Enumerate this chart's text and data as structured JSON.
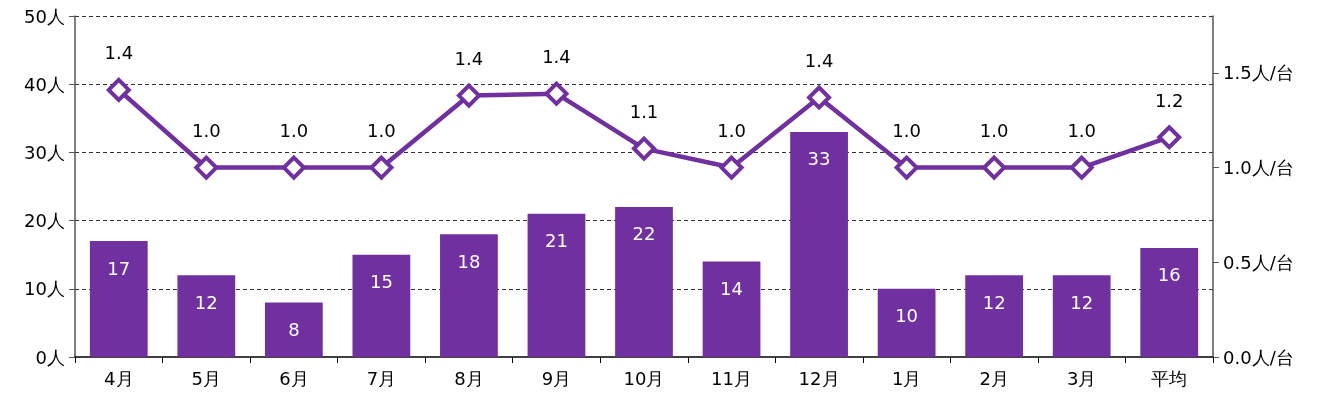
{
  "chart_data": {
    "type": "bar",
    "categories": [
      "4月",
      "5月",
      "6月",
      "7月",
      "8月",
      "9月",
      "10月",
      "11月",
      "12月",
      "1月",
      "2月",
      "3月",
      "平均"
    ],
    "ylim": [
      0,
      50
    ],
    "yticks": [
      {
        "value": 0,
        "label": "0人"
      },
      {
        "value": 10,
        "label": "10人"
      },
      {
        "value": 20,
        "label": "20人"
      },
      {
        "value": 30,
        "label": "30人"
      },
      {
        "value": 40,
        "label": "40人"
      },
      {
        "value": 50,
        "label": "50人"
      }
    ],
    "y2lim": [
      0,
      1.8
    ],
    "y2ticks": [
      {
        "value": 0,
        "label": "0.0人/台"
      },
      {
        "value": 0.5,
        "label": "0.5人/台"
      },
      {
        "value": 1,
        "label": "1.0人/台"
      },
      {
        "value": 1.5,
        "label": "1.5人/台"
      }
    ],
    "grid": "y",
    "series": [
      {
        "color": "#7030a0",
        "values": [
          17,
          12,
          8,
          15,
          18,
          21,
          22,
          14,
          33,
          10,
          12,
          12,
          16
        ],
        "data_labels": true
      },
      {
        "type": "line",
        "axis": "y2",
        "color": "#7030a0",
        "marker": "diamond",
        "line_style": "solid",
        "values": [
          1.41,
          1.0,
          1.0,
          1.0,
          1.38,
          1.39,
          1.1,
          1.0,
          1.37,
          1.0,
          1.0,
          1.0,
          1.16
        ],
        "value_labels": [
          "1.4",
          "1.0",
          "1.0",
          "1.0",
          "1.4",
          "1.4",
          "1.1",
          "1.0",
          "1.4",
          "1.0",
          "1.0",
          "1.0",
          "1.2"
        ]
      }
    ]
  }
}
